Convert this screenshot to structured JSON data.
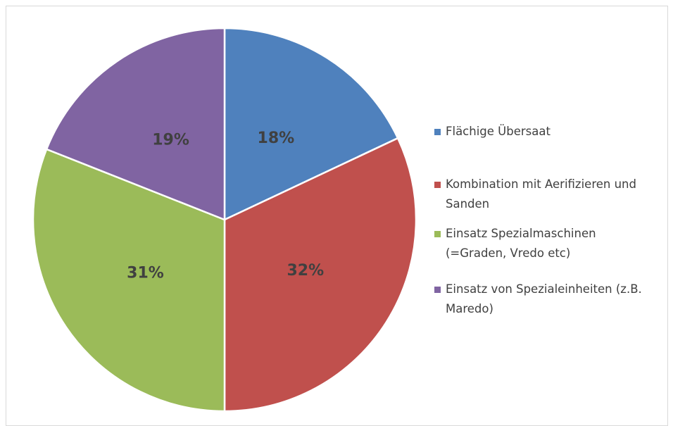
{
  "chart_data": {
    "type": "pie",
    "categories": [
      "Flächige Übersaat",
      "Kombination mit Aerifizieren und Sanden",
      "Einsatz Spezialmaschinen (=Graden, Vredo etc)",
      "Einsatz von Spezialeinheiten (z.B. Maredo)"
    ],
    "values": [
      18,
      32,
      31,
      19
    ],
    "value_labels": [
      "18%",
      "32%",
      "31%",
      "19%"
    ],
    "colors": [
      "#4f81bd",
      "#c0504d",
      "#9bbb59",
      "#8064a2"
    ],
    "legend": "right"
  }
}
